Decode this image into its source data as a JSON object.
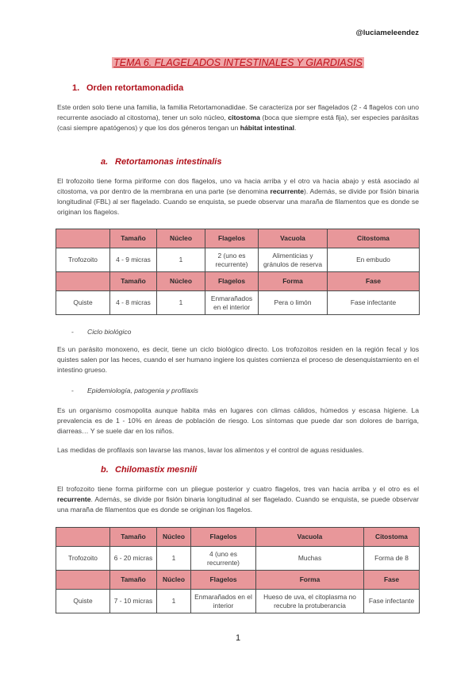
{
  "header": {
    "author": "@luciameleendez"
  },
  "title": "TEMA 6. FLAGELADOS INTESTINALES Y GIARDIASIS",
  "colors": {
    "accent": "#b0101a",
    "title_highlight": "#f0a6a8",
    "table_header": "#e8979a",
    "table_label": "#f6cfd0"
  },
  "section1": {
    "number": "1.",
    "heading": "Orden retortamonadida"
  },
  "para1": [
    {
      "t": "Este orden solo tiene una familia, la familia Retortamonadidae. Se caracteriza por ser flagelados (2 - 4 flagelos con uno recurrente asociado al citostoma), tener un solo núcleo, "
    },
    {
      "t": "citostoma",
      "b": true
    },
    {
      "t": " (boca que siempre está fija), ser especies parásitas (casi siempre apatógenos) y que los dos géneros tengan un "
    },
    {
      "t": "hábitat intestinal",
      "b": true
    },
    {
      "t": "."
    }
  ],
  "subA": {
    "number": "a.",
    "heading": "Retortamonas intestinalis"
  },
  "paraA": [
    {
      "t": "El trofozoito tiene forma piriforme con dos flagelos, uno va hacia arriba y el otro va hacia abajo y está asociado al citostoma, va por dentro de la membrana en una parte (se denomina "
    },
    {
      "t": "recurrente",
      "b": true
    },
    {
      "t": "). Además, se divide por fisión binaria longitudinal (FBL) al ser flagelado. Cuando se enquista, se puede observar una maraña de filamentos que es donde se originan los flagelos."
    }
  ],
  "tableA": {
    "header1": [
      "",
      "Tamaño",
      "Núcleo",
      "Flagelos",
      "Vacuola",
      "Citostoma"
    ],
    "row1": [
      "Trofozoito",
      "4 - 9 micras",
      "1",
      "2 (uno es recurrente)",
      "Alimenticias y gránulos de reserva",
      "En embudo"
    ],
    "header2": [
      "",
      "Tamaño",
      "Núcleo",
      "Flagelos",
      "Forma",
      "Fase"
    ],
    "row2": [
      "Quiste",
      "4 - 8 micras",
      "1",
      "Enmarañados en el interior",
      "Pera o limón",
      "Fase infectante"
    ]
  },
  "bullet1": {
    "dash": "-",
    "label": "Ciclo biológico"
  },
  "paraCiclo": [
    {
      "t": "Es un parásito monoxeno, es decir, tiene un ciclo biológico directo. Los trofozoitos residen en la región fecal y los quistes salen por las heces, cuando el ser humano ingiere los quistes comienza el proceso de desenquistamiento en el intestino grueso."
    }
  ],
  "bullet2": {
    "dash": "-",
    "label": "Epidemiología, patogenia y profilaxis"
  },
  "paraEpi": [
    {
      "t": "Es un organismo cosmopolita aunque habita más en lugares con climas cálidos, húmedos y escasa higiene. La prevalencia es de 1 - 10% en áreas de población de riesgo. Los síntomas que puede dar son dolores de barriga, diarreas… Y se suele dar en los niños."
    }
  ],
  "paraProf": [
    {
      "t": "Las medidas de profilaxis son lavarse las manos, lavar los alimentos y el control de aguas residuales."
    }
  ],
  "subB": {
    "number": "b.",
    "heading": "Chilomastix mesnili"
  },
  "paraB": [
    {
      "t": "El trofozoito tiene forma piriforme con un pliegue posterior y cuatro flagelos, tres van hacia arriba y el otro es el "
    },
    {
      "t": "recurrente",
      "b": true
    },
    {
      "t": ". Además, se divide por fisión binaria longitudinal al ser flagelado. Cuando se enquista, se puede observar una maraña de filamentos que es donde se originan los flagelos."
    }
  ],
  "tableB": {
    "header1": [
      "",
      "Tamaño",
      "Núcleo",
      "Flagelos",
      "Vacuola",
      "Citostoma"
    ],
    "row1": [
      "Trofozoito",
      "6 - 20 micras",
      "1",
      "4 (uno es recurrente)",
      "Muchas",
      "Forma de 8"
    ],
    "header2": [
      "",
      "Tamaño",
      "Núcleo",
      "Flagelos",
      "Forma",
      "Fase"
    ],
    "row2": [
      "Quiste",
      "7 - 10 micras",
      "1",
      "Enmarañados en el interior",
      "Hueso de uva, el citoplasma no recubre la protuberancia",
      "Fase infectante"
    ]
  },
  "page_number": "1"
}
